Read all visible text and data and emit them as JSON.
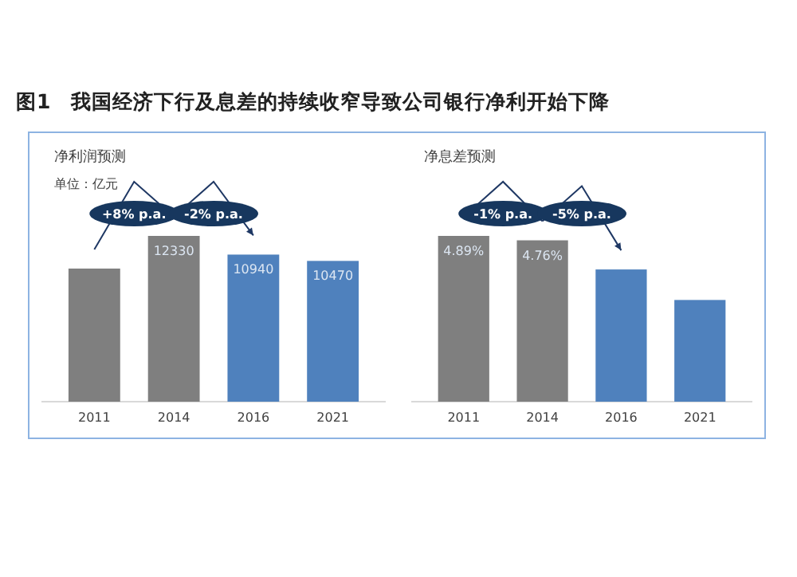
{
  "chart_data": [
    {
      "type": "bar",
      "title": "净利润预测",
      "subtitle": "单位：亿元",
      "categories": [
        "2011",
        "2014",
        "2016",
        "2021"
      ],
      "values": [
        9900,
        12330,
        10940,
        10470
      ],
      "colors": [
        "#7f7f7f",
        "#7f7f7f",
        "#4f81bd",
        "#4f81bd"
      ],
      "value_labels": [
        null,
        "12330",
        "10940",
        "10470"
      ],
      "annotations": [
        "图1　我国经济下行及息差的持续收窄导致公司银行净利开始下降",
        "+8% p.a.",
        "-2% p.a."
      ]
    },
    {
      "type": "bar",
      "title": "净息差预测",
      "categories": [
        "2011",
        "2014",
        "2016",
        "2021"
      ],
      "values": [
        4.89,
        4.76,
        3.9,
        3.0
      ],
      "colors": [
        "#7f7f7f",
        "#7f7f7f",
        "#4f81bd",
        "#4f81bd"
      ],
      "value_labels": [
        "4.89%",
        "4.76%",
        null,
        null
      ],
      "annotations": [
        "-1% p.a.",
        "-5% p.a."
      ]
    }
  ]
}
